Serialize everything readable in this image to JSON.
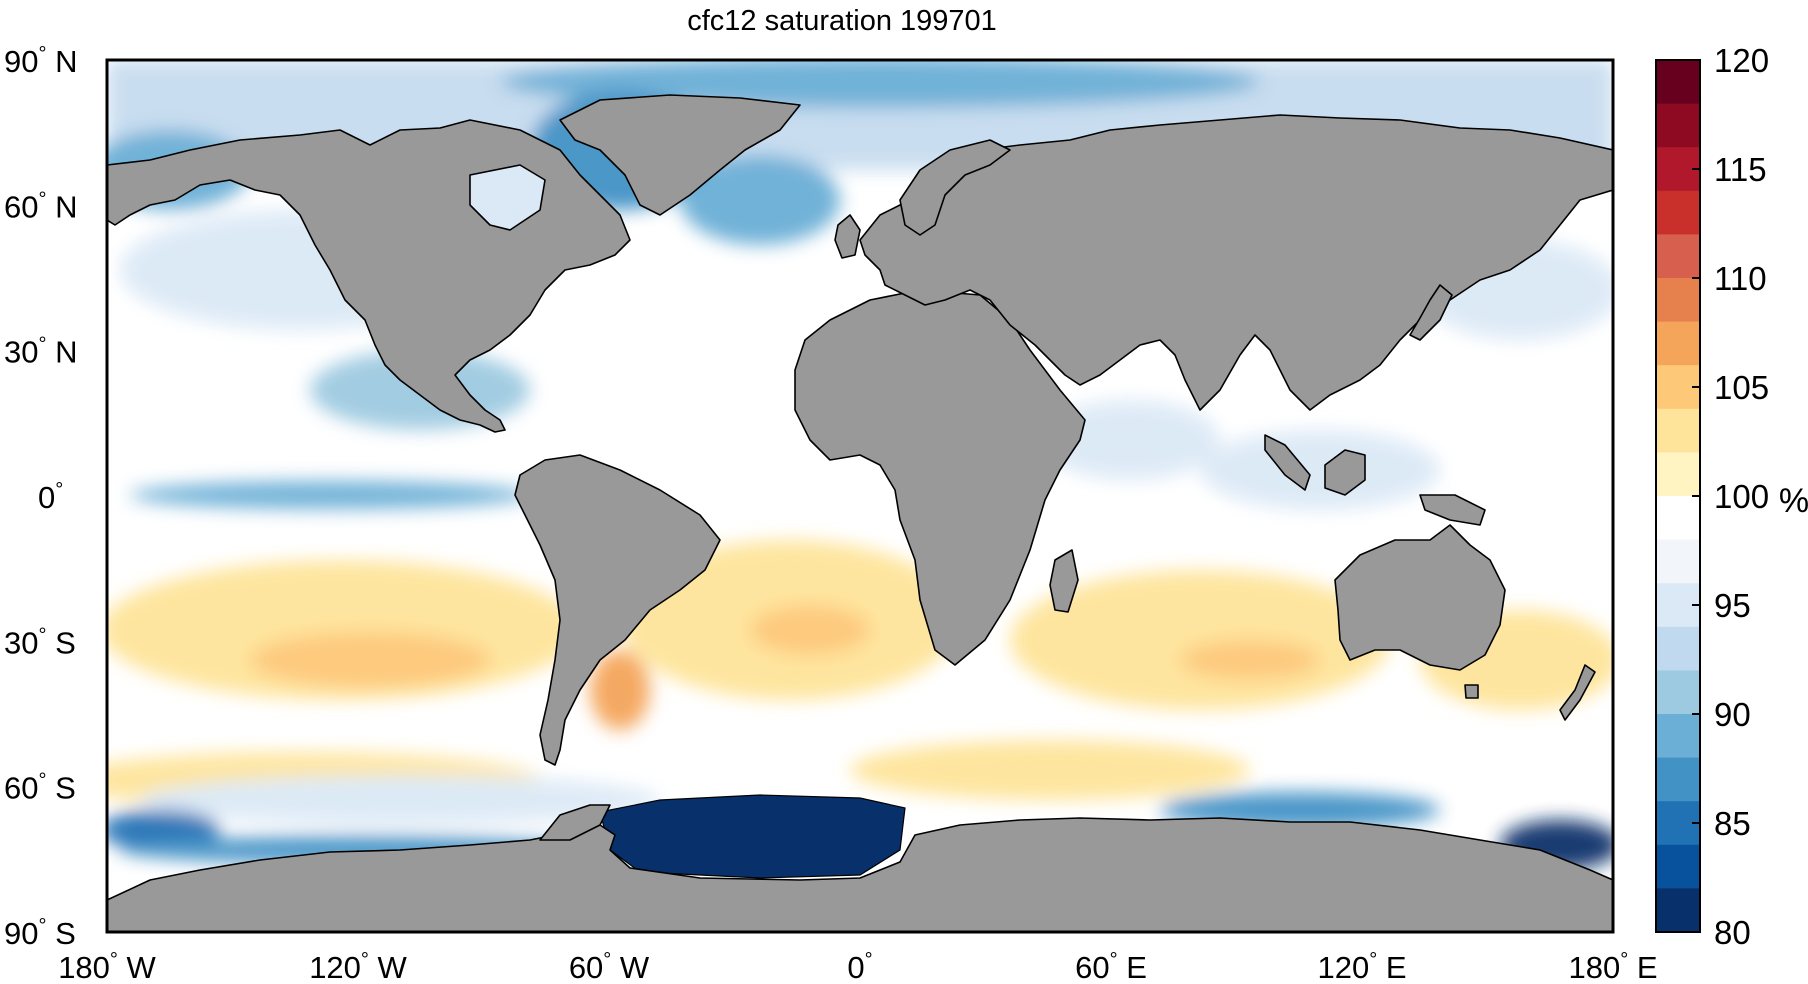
{
  "title": "cfc12 saturation 199701",
  "axes": {
    "lat_ticks": [
      {
        "label": "90",
        "hemi": "N"
      },
      {
        "label": "60",
        "hemi": "N"
      },
      {
        "label": "30",
        "hemi": "N"
      },
      {
        "label": "0",
        "hemi": ""
      },
      {
        "label": "30",
        "hemi": "S"
      },
      {
        "label": "60",
        "hemi": "S"
      },
      {
        "label": "90",
        "hemi": "S"
      }
    ],
    "lon_ticks": [
      {
        "label": "180",
        "hemi": "W"
      },
      {
        "label": "120",
        "hemi": "W"
      },
      {
        "label": "60",
        "hemi": "W"
      },
      {
        "label": "0",
        "hemi": ""
      },
      {
        "label": "60",
        "hemi": "E"
      },
      {
        "label": "120",
        "hemi": "E"
      },
      {
        "label": "180",
        "hemi": "E"
      }
    ],
    "degree_symbol": "°"
  },
  "colorbar": {
    "unit": "%",
    "min": 80,
    "max": 120,
    "tick_labels": [
      "120",
      "115",
      "110",
      "105",
      "100",
      "95",
      "90",
      "85",
      "80"
    ],
    "colors_top_to_bottom": [
      "#67001f",
      "#8e0a22",
      "#b2182b",
      "#c9302c",
      "#d6604d",
      "#e6804d",
      "#f4a55a",
      "#fdc878",
      "#fee49a",
      "#fff4c2",
      "#ffffff",
      "#f2f6fb",
      "#dbe9f6",
      "#c0d9ee",
      "#9ecae1",
      "#6baed6",
      "#4292c6",
      "#2171b5",
      "#08519c",
      "#08306b"
    ]
  },
  "map_colors": {
    "land": "#999999",
    "coastline": "#000000",
    "ocean_base": "#ffffff"
  }
}
